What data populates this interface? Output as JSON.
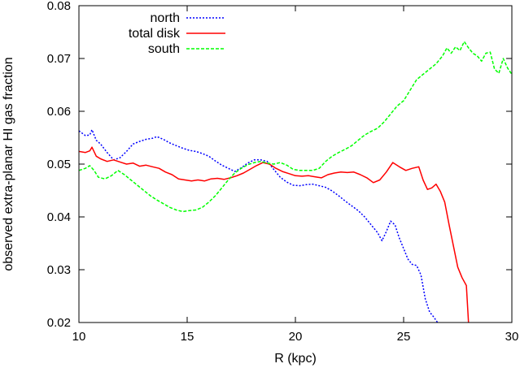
{
  "chart_data": {
    "type": "line",
    "title": "",
    "xlabel": "R (kpc)",
    "ylabel": "observed extra-planar HI gas fraction",
    "xlim": [
      10,
      30
    ],
    "ylim": [
      0.02,
      0.08
    ],
    "xticks": [
      10,
      15,
      20,
      25,
      30
    ],
    "xtick_labels": [
      "10",
      "15",
      "20",
      "25",
      "30"
    ],
    "yticks": [
      0.02,
      0.03,
      0.04,
      0.05,
      0.06,
      0.07,
      0.08
    ],
    "ytick_labels": [
      "0.02",
      "0.03",
      "0.04",
      "0.05",
      "0.06",
      "0.07",
      "0.08"
    ],
    "grid": false,
    "legend_position": "top-left",
    "series": [
      {
        "name": "north",
        "color": "#0000ff",
        "style": "dotted",
        "x": [
          10.0,
          10.3,
          10.5,
          10.6,
          10.8,
          11.0,
          11.3,
          11.6,
          11.9,
          12.2,
          12.5,
          12.8,
          13.1,
          13.4,
          13.6,
          13.9,
          14.2,
          14.5,
          14.8,
          15.1,
          15.4,
          15.7,
          16.0,
          16.3,
          16.6,
          16.9,
          17.2,
          17.5,
          17.8,
          18.1,
          18.4,
          18.7,
          19.0,
          19.3,
          19.6,
          19.9,
          20.2,
          20.5,
          20.8,
          21.1,
          21.4,
          21.7,
          22.0,
          22.3,
          22.6,
          22.9,
          23.2,
          23.5,
          23.8,
          24.0,
          24.2,
          24.4,
          24.6,
          24.8,
          25.0,
          25.2,
          25.4,
          25.6,
          25.8,
          26.0,
          26.2,
          26.4,
          26.6
        ],
        "y": [
          0.0563,
          0.0554,
          0.0555,
          0.0565,
          0.0545,
          0.0538,
          0.0522,
          0.0508,
          0.0512,
          0.0524,
          0.0538,
          0.0543,
          0.0547,
          0.0549,
          0.0552,
          0.0547,
          0.054,
          0.0535,
          0.053,
          0.0526,
          0.0524,
          0.052,
          0.0515,
          0.0506,
          0.0498,
          0.0492,
          0.0486,
          0.0493,
          0.0502,
          0.0508,
          0.0508,
          0.0505,
          0.049,
          0.0475,
          0.0466,
          0.046,
          0.0459,
          0.0461,
          0.0462,
          0.0459,
          0.0456,
          0.0449,
          0.044,
          0.043,
          0.0421,
          0.0412,
          0.04,
          0.0385,
          0.037,
          0.0355,
          0.0372,
          0.0392,
          0.0385,
          0.036,
          0.034,
          0.032,
          0.031,
          0.0308,
          0.029,
          0.0245,
          0.022,
          0.021,
          0.0198
        ]
      },
      {
        "name": "total disk",
        "color": "#ff0000",
        "style": "solid",
        "x": [
          10.0,
          10.3,
          10.5,
          10.6,
          10.8,
          11.0,
          11.3,
          11.6,
          11.9,
          12.2,
          12.5,
          12.8,
          13.1,
          13.4,
          13.7,
          14.0,
          14.3,
          14.6,
          14.9,
          15.2,
          15.5,
          15.8,
          16.1,
          16.4,
          16.7,
          17.0,
          17.3,
          17.6,
          17.9,
          18.2,
          18.5,
          18.8,
          19.1,
          19.4,
          19.7,
          20.0,
          20.3,
          20.6,
          20.9,
          21.2,
          21.5,
          21.8,
          22.1,
          22.4,
          22.7,
          23.0,
          23.3,
          23.6,
          23.9,
          24.2,
          24.5,
          24.8,
          25.1,
          25.4,
          25.7,
          25.9,
          26.1,
          26.3,
          26.5,
          26.7,
          26.9,
          27.1,
          27.3,
          27.5,
          27.7,
          27.9,
          28.0
        ],
        "y": [
          0.0524,
          0.0522,
          0.0525,
          0.0532,
          0.0515,
          0.051,
          0.0505,
          0.0508,
          0.0504,
          0.05,
          0.0502,
          0.0496,
          0.0498,
          0.0495,
          0.0492,
          0.0485,
          0.048,
          0.0472,
          0.047,
          0.0468,
          0.047,
          0.0468,
          0.0472,
          0.0473,
          0.0471,
          0.0474,
          0.0478,
          0.0483,
          0.049,
          0.0497,
          0.0503,
          0.05,
          0.0492,
          0.0486,
          0.0482,
          0.0478,
          0.0477,
          0.0478,
          0.0476,
          0.0474,
          0.048,
          0.0483,
          0.0485,
          0.0484,
          0.0485,
          0.048,
          0.0474,
          0.0465,
          0.047,
          0.0485,
          0.0503,
          0.0495,
          0.0488,
          0.0492,
          0.0495,
          0.047,
          0.0452,
          0.0455,
          0.0462,
          0.0448,
          0.0428,
          0.0385,
          0.0345,
          0.0305,
          0.0285,
          0.027,
          0.0198
        ]
      },
      {
        "name": "south",
        "color": "#00ff00",
        "style": "dashed",
        "x": [
          10.0,
          10.3,
          10.5,
          10.7,
          10.9,
          11.2,
          11.5,
          11.8,
          12.1,
          12.4,
          12.7,
          13.0,
          13.3,
          13.6,
          13.9,
          14.2,
          14.5,
          14.8,
          15.1,
          15.4,
          15.7,
          16.0,
          16.3,
          16.6,
          16.9,
          17.2,
          17.5,
          17.8,
          18.1,
          18.4,
          18.7,
          19.0,
          19.3,
          19.6,
          19.9,
          20.2,
          20.5,
          20.8,
          21.1,
          21.4,
          21.7,
          22.0,
          22.3,
          22.6,
          22.9,
          23.2,
          23.5,
          23.8,
          24.1,
          24.4,
          24.7,
          25.0,
          25.3,
          25.6,
          25.9,
          26.2,
          26.5,
          26.8,
          27.0,
          27.2,
          27.4,
          27.6,
          27.8,
          28.0,
          28.2,
          28.4,
          28.6,
          28.8,
          29.0,
          29.2,
          29.4,
          29.6,
          29.8,
          30.0
        ],
        "y": [
          0.0488,
          0.0492,
          0.0497,
          0.0488,
          0.0475,
          0.0472,
          0.0478,
          0.0488,
          0.048,
          0.047,
          0.046,
          0.045,
          0.044,
          0.0432,
          0.0425,
          0.0418,
          0.0413,
          0.041,
          0.0412,
          0.0413,
          0.0418,
          0.0428,
          0.044,
          0.0455,
          0.047,
          0.0483,
          0.0492,
          0.0499,
          0.0503,
          0.0505,
          0.0502,
          0.05,
          0.0503,
          0.0498,
          0.049,
          0.0488,
          0.0488,
          0.0488,
          0.0492,
          0.0505,
          0.0515,
          0.0522,
          0.0528,
          0.0535,
          0.0545,
          0.0555,
          0.0562,
          0.0568,
          0.058,
          0.0595,
          0.061,
          0.062,
          0.064,
          0.066,
          0.067,
          0.068,
          0.069,
          0.0705,
          0.072,
          0.071,
          0.0722,
          0.0715,
          0.0732,
          0.072,
          0.071,
          0.0705,
          0.0695,
          0.071,
          0.0712,
          0.068,
          0.0672,
          0.07,
          0.0682,
          0.067
        ]
      }
    ]
  }
}
